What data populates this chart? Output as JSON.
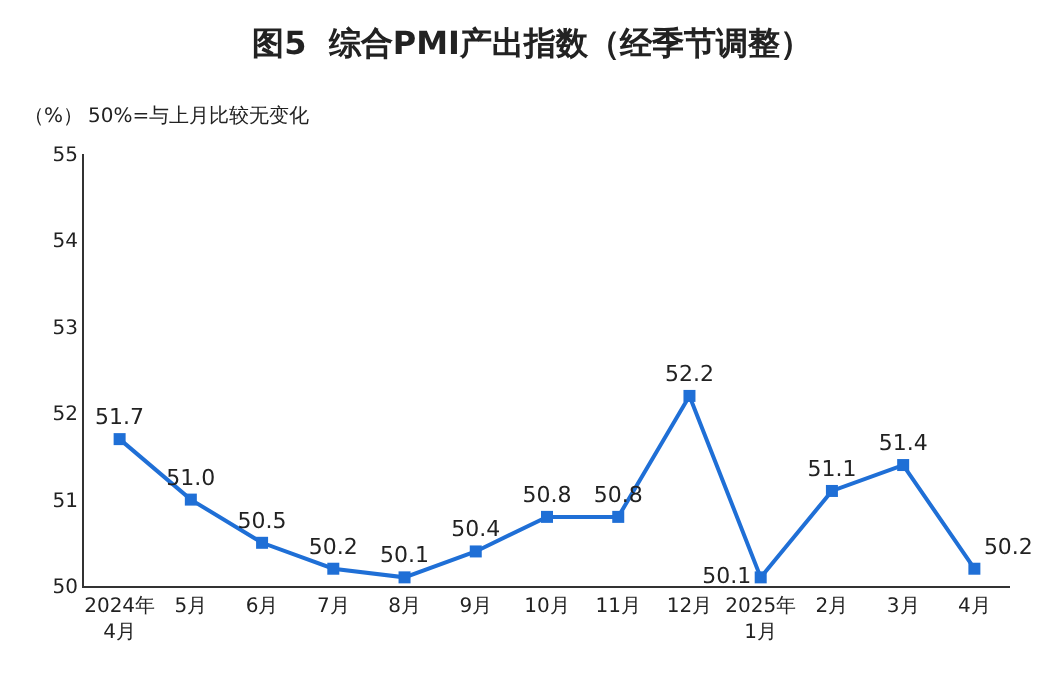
{
  "chart_data": {
    "type": "line",
    "title": "图5  综合PMI产出指数（经季节调整）",
    "ylabel": "（%）",
    "annotations": [
      "50%=与上月比较无变化"
    ],
    "categories": [
      "2024年\n4月",
      "5月",
      "6月",
      "7月",
      "8月",
      "9月",
      "10月",
      "11月",
      "12月",
      "2025年\n1月",
      "2月",
      "3月",
      "4月"
    ],
    "series": [
      {
        "color": "#1f6fd6",
        "values": [
          51.7,
          51.0,
          50.5,
          50.2,
          50.1,
          50.4,
          50.8,
          50.8,
          52.2,
          50.1,
          51.1,
          51.4,
          50.2
        ],
        "value_labels": [
          "51.7",
          "51.0",
          "50.5",
          "50.2",
          "50.1",
          "50.4",
          "50.8",
          "50.8",
          "52.2",
          "50.1",
          "51.1",
          "51.4",
          "50.2"
        ]
      }
    ],
    "ylim": [
      50,
      55
    ],
    "yticks": [
      50,
      51,
      52,
      53,
      54,
      55
    ],
    "marker": "square",
    "line_style": "solid"
  }
}
